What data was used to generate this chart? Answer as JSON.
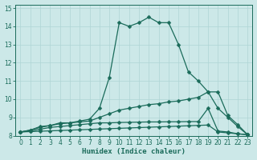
{
  "xlabel": "Humidex (Indice chaleur)",
  "bg_color": "#cce8e8",
  "line_color": "#1a6b5a",
  "grid_color": "#b0d8d8",
  "xlim": [
    -0.5,
    23.5
  ],
  "ylim": [
    8,
    15.2
  ],
  "xticks": [
    0,
    1,
    2,
    3,
    4,
    5,
    6,
    7,
    8,
    9,
    10,
    11,
    12,
    13,
    14,
    15,
    16,
    17,
    18,
    19,
    20,
    21,
    22,
    23
  ],
  "yticks": [
    8,
    9,
    10,
    11,
    12,
    13,
    14,
    15
  ],
  "series1_x": [
    0,
    1,
    2,
    3,
    4,
    5,
    6,
    7,
    8,
    9,
    10,
    11,
    12,
    13,
    14,
    15,
    16,
    17,
    18,
    19,
    20,
    21,
    22,
    23
  ],
  "series1_y": [
    8.2,
    8.3,
    8.5,
    8.55,
    8.7,
    8.7,
    8.8,
    8.9,
    9.5,
    11.2,
    14.2,
    14.0,
    14.2,
    14.5,
    14.2,
    14.2,
    13.0,
    11.5,
    11.0,
    10.4,
    9.5,
    9.0,
    8.5,
    8.05
  ],
  "series2_x": [
    0,
    1,
    2,
    3,
    4,
    5,
    6,
    7,
    8,
    9,
    10,
    11,
    12,
    13,
    14,
    15,
    16,
    17,
    18,
    19,
    20,
    21,
    22,
    23
  ],
  "series2_y": [
    8.2,
    8.3,
    8.45,
    8.55,
    8.65,
    8.7,
    8.75,
    8.8,
    9.0,
    9.2,
    9.4,
    9.5,
    9.6,
    9.7,
    9.75,
    9.85,
    9.9,
    10.0,
    10.1,
    10.4,
    10.4,
    9.1,
    8.6,
    8.05
  ],
  "series3_x": [
    0,
    1,
    2,
    3,
    4,
    5,
    6,
    7,
    8,
    9,
    10,
    11,
    12,
    13,
    14,
    15,
    16,
    17,
    18,
    19,
    20,
    21,
    22,
    23
  ],
  "series3_y": [
    8.2,
    8.25,
    8.35,
    8.45,
    8.5,
    8.55,
    8.6,
    8.65,
    8.7,
    8.7,
    8.72,
    8.73,
    8.74,
    8.75,
    8.75,
    8.76,
    8.76,
    8.77,
    8.77,
    9.5,
    8.25,
    8.2,
    8.1,
    8.05
  ],
  "series4_x": [
    0,
    1,
    2,
    3,
    4,
    5,
    6,
    7,
    8,
    9,
    10,
    11,
    12,
    13,
    14,
    15,
    16,
    17,
    18,
    19,
    20,
    21,
    22,
    23
  ],
  "series4_y": [
    8.2,
    8.22,
    8.24,
    8.26,
    8.28,
    8.3,
    8.32,
    8.34,
    8.36,
    8.38,
    8.4,
    8.42,
    8.44,
    8.46,
    8.48,
    8.5,
    8.52,
    8.54,
    8.56,
    8.58,
    8.2,
    8.15,
    8.1,
    8.05
  ]
}
